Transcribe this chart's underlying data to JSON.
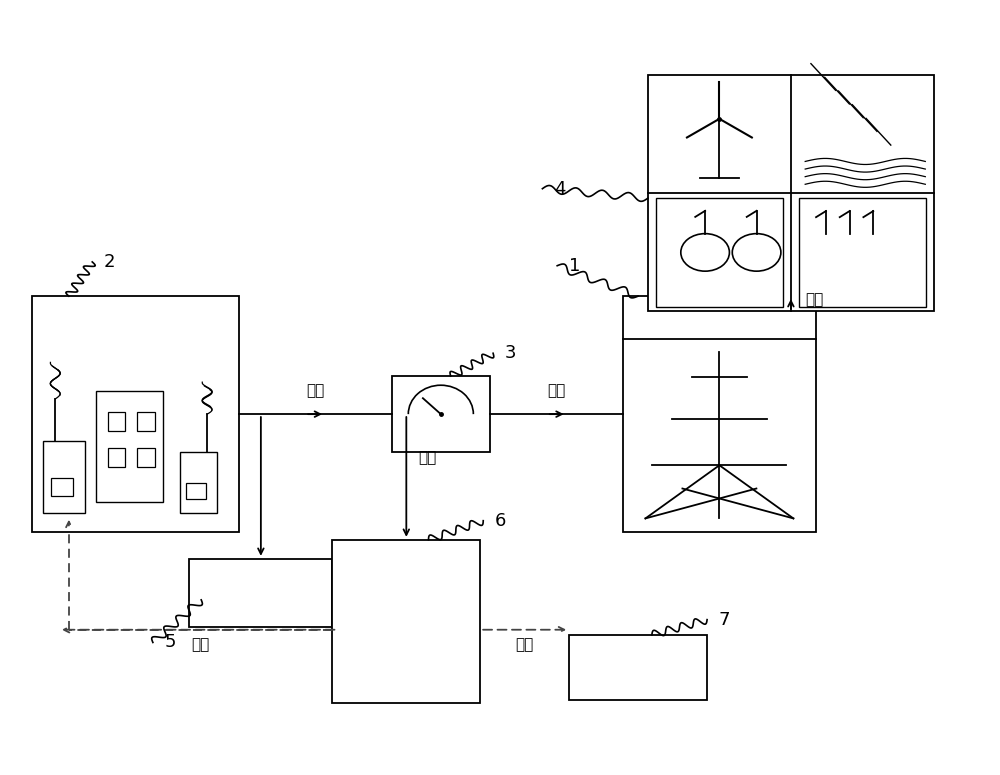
{
  "bg": "#ffffff",
  "lc": "#000000",
  "lw": 1.3,
  "fig_w": 10.0,
  "fig_h": 7.75,
  "font_cn": 11,
  "font_num": 13,
  "boxes": {
    "b1": [
      0.625,
      0.31,
      0.195,
      0.31
    ],
    "b2": [
      0.025,
      0.31,
      0.21,
      0.31
    ],
    "b3": [
      0.39,
      0.415,
      0.1,
      0.1
    ],
    "b4": [
      0.65,
      0.6,
      0.29,
      0.31
    ],
    "b5": [
      0.185,
      0.185,
      0.145,
      0.09
    ],
    "b6": [
      0.33,
      0.085,
      0.15,
      0.215
    ],
    "b7": [
      0.57,
      0.09,
      0.14,
      0.085
    ]
  },
  "elec_label": "电力",
  "oxy_label": "氧气",
  "hyd_label": "氢气"
}
